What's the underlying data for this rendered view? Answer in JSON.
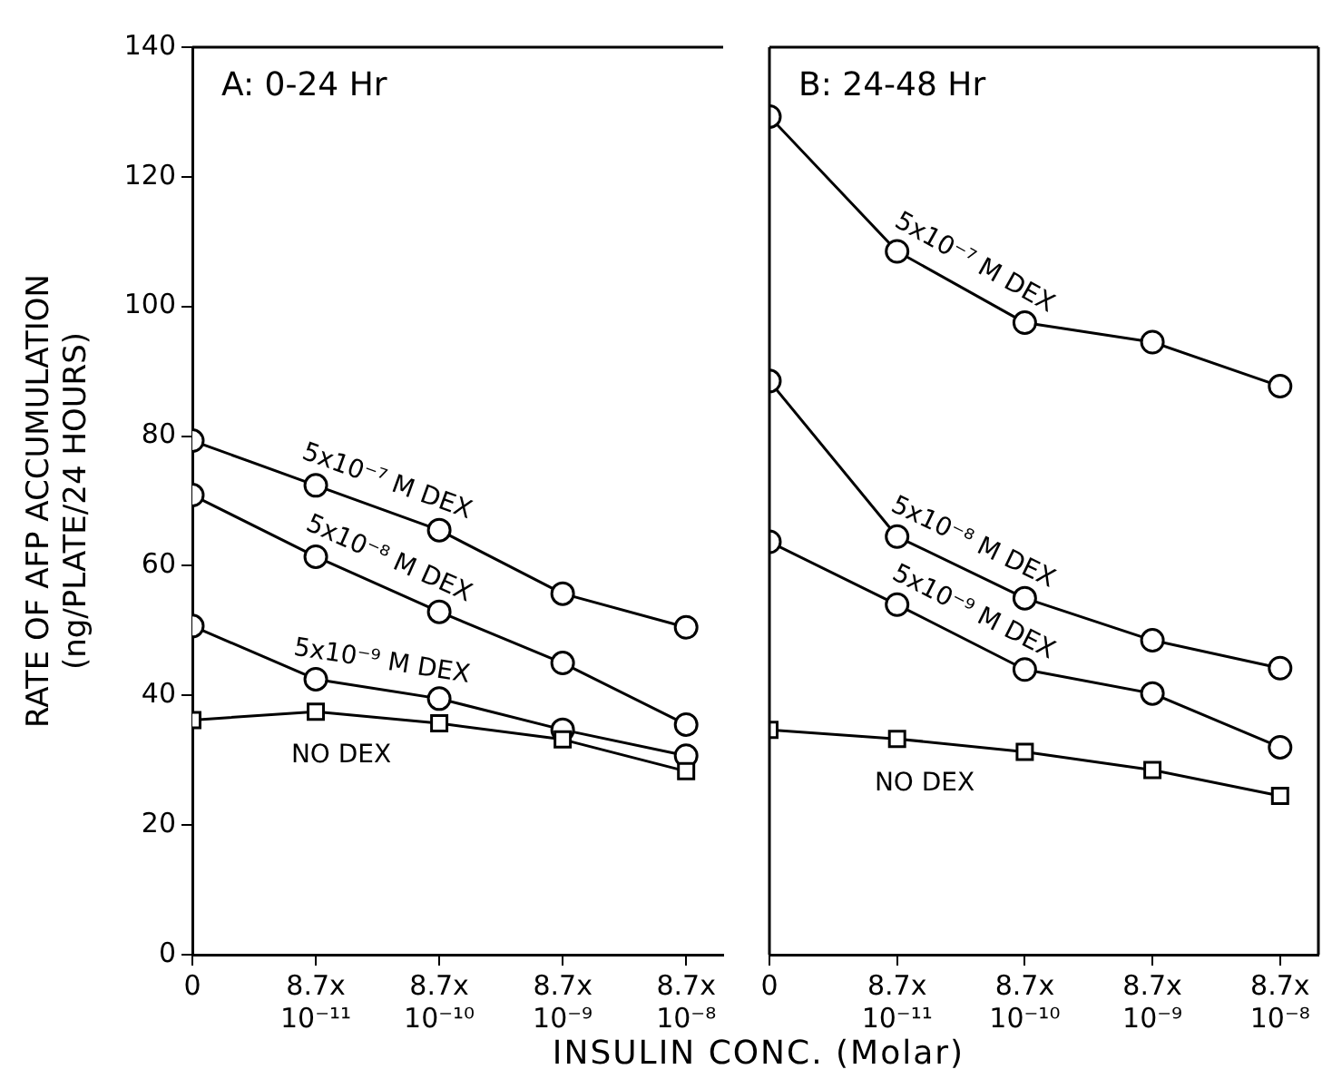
{
  "chart_data": [
    {
      "type": "line",
      "title": "A: 0-24 Hr",
      "xlabel": "INSULIN CONC. (Molar)",
      "ylabel": "RATE OF AFP ACCUMULATION\n(ng/PLATE/24 HOURS)",
      "categories": [
        "0",
        "8.7x 10⁻¹¹",
        "8.7x 10⁻¹⁰",
        "8.7x 10⁻⁹",
        "8.7x 10⁻⁸"
      ],
      "ylim": [
        0,
        140
      ],
      "yticks": [
        0,
        20,
        40,
        60,
        80,
        100,
        120,
        140
      ],
      "grid": false,
      "legend": false,
      "series": [
        {
          "name": "5x10⁻⁷ M DEX",
          "color": "#000000",
          "marker": "circle",
          "values": [
            79.3,
            72.4,
            65.5,
            55.7,
            50.5
          ]
        },
        {
          "name": "5x10⁻⁸ M DEX",
          "color": "#000000",
          "marker": "circle",
          "values": [
            70.9,
            61.4,
            52.9,
            45,
            35.5
          ]
        },
        {
          "name": "5x10⁻⁹ M DEX",
          "color": "#000000",
          "marker": "circle",
          "values": [
            50.7,
            42.5,
            39.5,
            34.7,
            30.7
          ]
        },
        {
          "name": "NO DEX",
          "color": "#000000",
          "marker": "square",
          "values": [
            36.2,
            37.5,
            35.7,
            33.2,
            28.3
          ]
        }
      ]
    },
    {
      "type": "line",
      "title": "B: 24-48 Hr",
      "categories": [
        "0",
        "8.7x 10⁻¹¹",
        "8.7x 10⁻¹⁰",
        "8.7x 10⁻⁹",
        "8.7x 10⁻⁸"
      ],
      "ylim": [
        0,
        140
      ],
      "yticks": [
        0,
        20,
        40,
        60,
        80,
        100,
        120,
        140
      ],
      "tick_labels": "x",
      "grid": false,
      "legend": false,
      "series": [
        {
          "name": "5x10⁻⁷ M DEX",
          "color": "#000000",
          "marker": "circle",
          "values": [
            129.3,
            108.5,
            97.5,
            94.5,
            87.7
          ]
        },
        {
          "name": "5x10⁻⁸ M DEX",
          "color": "#000000",
          "marker": "circle",
          "values": [
            88.5,
            64.5,
            55,
            48.5,
            44.2
          ]
        },
        {
          "name": "5x10⁻⁹ M DEX",
          "color": "#000000",
          "marker": "circle",
          "values": [
            63.7,
            54,
            44,
            40.3,
            32
          ]
        },
        {
          "name": "NO DEX",
          "color": "#000000",
          "marker": "square",
          "values": [
            34.7,
            33.3,
            31.3,
            28.5,
            24.5
          ]
        }
      ]
    }
  ]
}
